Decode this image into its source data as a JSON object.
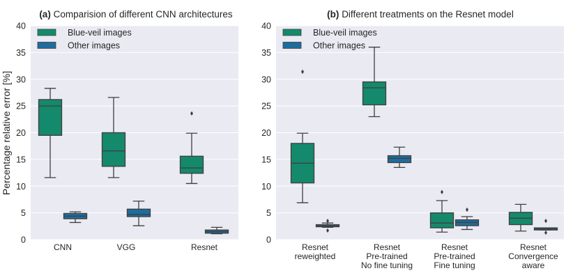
{
  "figure": {
    "ylabel": "Percentage relative error [%]"
  },
  "colors": {
    "background": "#eaeaf2",
    "grid": "#ffffff",
    "blue_veil": "#14896b",
    "other": "#1f6c9e",
    "edge": "#3f3f3f"
  },
  "chart_data": [
    {
      "type": "box",
      "title_prefix": "(a)",
      "title_text": "Comparision of different CNN architectures",
      "xlabel": "",
      "ylabel": "Percentage relative error [%]",
      "ylim": [
        0,
        40
      ],
      "yticks": [
        "0",
        "5",
        "10",
        "15",
        "20",
        "25",
        "30",
        "35",
        "40"
      ],
      "grid": true,
      "legend_position": "top-left",
      "categories": [
        {
          "lines": [
            "CNN"
          ]
        },
        {
          "lines": [
            "VGG"
          ]
        },
        {
          "lines": [
            "Resnet"
          ]
        }
      ],
      "series": [
        {
          "name": "Blue-veil images",
          "boxes": [
            {
              "whislo": 11.6,
              "q1": 19.5,
              "med": 25.0,
              "q3": 26.2,
              "whishi": 28.3,
              "fliers": []
            },
            {
              "whislo": 11.6,
              "q1": 13.7,
              "med": 16.6,
              "q3": 20.0,
              "whishi": 26.6,
              "fliers": []
            },
            {
              "whislo": 10.5,
              "q1": 12.4,
              "med": 13.4,
              "q3": 15.6,
              "whishi": 19.9,
              "fliers": [
                23.6
              ]
            }
          ]
        },
        {
          "name": "Other images",
          "boxes": [
            {
              "whislo": 3.2,
              "q1": 3.9,
              "med": 4.4,
              "q3": 4.9,
              "whishi": 5.2,
              "fliers": []
            },
            {
              "whislo": 2.6,
              "q1": 4.3,
              "med": 4.7,
              "q3": 5.7,
              "whishi": 7.2,
              "fliers": []
            },
            {
              "whislo": 1.1,
              "q1": 1.2,
              "med": 1.5,
              "q3": 1.8,
              "whishi": 2.3,
              "fliers": []
            }
          ]
        }
      ]
    },
    {
      "type": "box",
      "title_prefix": "(b)",
      "title_text": "Different treatments on the Resnet model",
      "xlabel": "",
      "ylabel": "",
      "ylim": [
        0,
        40
      ],
      "yticks": [
        "0",
        "5",
        "10",
        "15",
        "20",
        "25",
        "30",
        "35",
        "40"
      ],
      "grid": true,
      "legend_position": "top-left",
      "categories": [
        {
          "lines": [
            "Resnet",
            "reweighted"
          ]
        },
        {
          "lines": [
            "Resnet",
            "Pre-trained",
            "No fine tuning"
          ]
        },
        {
          "lines": [
            "Resnet",
            "Pre-trained",
            "Fine tuning"
          ]
        },
        {
          "lines": [
            "Resnet",
            "Convergence",
            "aware"
          ]
        }
      ],
      "series": [
        {
          "name": "Blue-veil images",
          "boxes": [
            {
              "whislo": 6.9,
              "q1": 10.6,
              "med": 14.3,
              "q3": 18.0,
              "whishi": 19.9,
              "fliers": [
                31.4
              ]
            },
            {
              "whislo": 23.0,
              "q1": 25.2,
              "med": 28.4,
              "q3": 29.5,
              "whishi": 36.0,
              "fliers": []
            },
            {
              "whislo": 1.4,
              "q1": 2.2,
              "med": 3.1,
              "q3": 5.0,
              "whishi": 7.3,
              "fliers": [
                8.9
              ]
            },
            {
              "whislo": 1.6,
              "q1": 2.8,
              "med": 4.0,
              "q3": 5.1,
              "whishi": 6.6,
              "fliers": []
            }
          ]
        },
        {
          "name": "Other images",
          "boxes": [
            {
              "whislo": 2.3,
              "q1": 2.4,
              "med": 2.6,
              "q3": 2.8,
              "whishi": 3.1,
              "fliers": [
                1.7,
                3.5
              ]
            },
            {
              "whislo": 13.5,
              "q1": 14.4,
              "med": 15.2,
              "q3": 15.7,
              "whishi": 17.3,
              "fliers": []
            },
            {
              "whislo": 1.9,
              "q1": 2.6,
              "med": 3.2,
              "q3": 3.7,
              "whishi": 4.3,
              "fliers": [
                5.6
              ]
            },
            {
              "whislo": 1.8,
              "q1": 1.8,
              "med": 2.0,
              "q3": 2.2,
              "whishi": 2.2,
              "fliers": [
                1.3,
                3.5
              ]
            }
          ]
        }
      ]
    }
  ]
}
